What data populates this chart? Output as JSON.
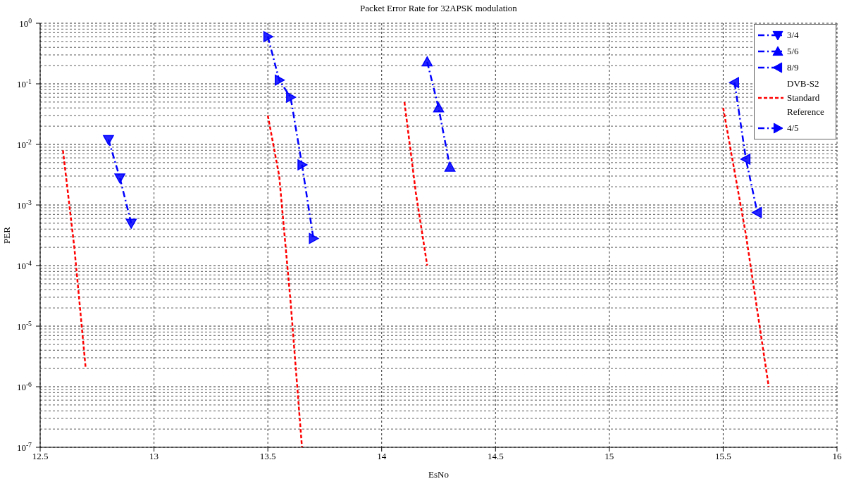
{
  "chart_data": {
    "type": "line",
    "title": "Packet Error Rate for 32APSK modulation",
    "xlabel": "EsNo",
    "ylabel": "PER",
    "log": "y",
    "grid": true,
    "legend": "top right",
    "xlim": [
      12.5,
      16
    ],
    "xticks": [
      12.5,
      13,
      13.5,
      14,
      14.5,
      15,
      15.5,
      16
    ],
    "ylim": [
      1e-07,
      1
    ],
    "yticks": [
      {
        "value": 1e-07,
        "label": "10$^{-7}$"
      },
      {
        "value": 1e-06,
        "label": "10$^{-6}$"
      },
      {
        "value": 1e-05,
        "label": "10$^{-5}$"
      },
      {
        "value": 0.0001,
        "label": "10$^{-4}$"
      },
      {
        "value": 0.001,
        "label": "10$^{-3}$"
      },
      {
        "value": 0.01,
        "label": "10$^{-2}$"
      },
      {
        "value": 0.1,
        "label": "10$^{-1}$"
      },
      {
        "value": 1,
        "label": "10$^{0}$"
      }
    ],
    "series": [
      {
        "name": "3/4",
        "color": "#0000ff",
        "marker": "triangle-down",
        "line_style": "dashdot",
        "x": [
          12.8,
          12.85,
          12.9
        ],
        "values": [
          0.012,
          0.0028,
          0.0005
        ]
      },
      {
        "name": "5/6",
        "color": "#0000ff",
        "marker": "triangle",
        "line_style": "dashdot",
        "x": [
          14.2,
          14.25,
          14.3
        ],
        "values": [
          0.23,
          0.04,
          0.0042
        ]
      },
      {
        "name": "8/9",
        "color": "#0000ff",
        "marker": "triangle-left",
        "line_style": "dashdot",
        "x": [
          15.55,
          15.6,
          15.65
        ],
        "values": [
          0.105,
          0.0057,
          0.00075
        ]
      },
      {
        "name": "DVB-S2 Standard Reference",
        "color": "#ff0000",
        "marker": "none",
        "line_style": "dashed",
        "x": [
          12.6,
          12.65,
          12.7
        ],
        "values": [
          0.008,
          0.0002,
          2e-06
        ]
      },
      {
        "color": "#ff0000",
        "marker": "none",
        "line_style": "dashed",
        "x": [
          13.5,
          13.55,
          13.6,
          13.65
        ],
        "values": [
          0.03,
          0.003,
          2.5e-05,
          1e-07
        ]
      },
      {
        "color": "#ff0000",
        "marker": "none",
        "line_style": "dashed",
        "x": [
          14.1,
          14.15,
          14.2
        ],
        "values": [
          0.05,
          0.0016,
          0.0001
        ]
      },
      {
        "color": "#ff0000",
        "marker": "none",
        "line_style": "dashed",
        "x": [
          15.5,
          15.6,
          15.7
        ],
        "values": [
          0.04,
          0.00032,
          1e-06
        ]
      },
      {
        "name": "4/5",
        "color": "#0000ff",
        "marker": "triangle-right",
        "line_style": "dashdot",
        "x": [
          13.5,
          13.55,
          13.6,
          13.65,
          13.7
        ],
        "values": [
          0.6,
          0.115,
          0.06,
          0.0046,
          0.00028
        ]
      }
    ]
  }
}
